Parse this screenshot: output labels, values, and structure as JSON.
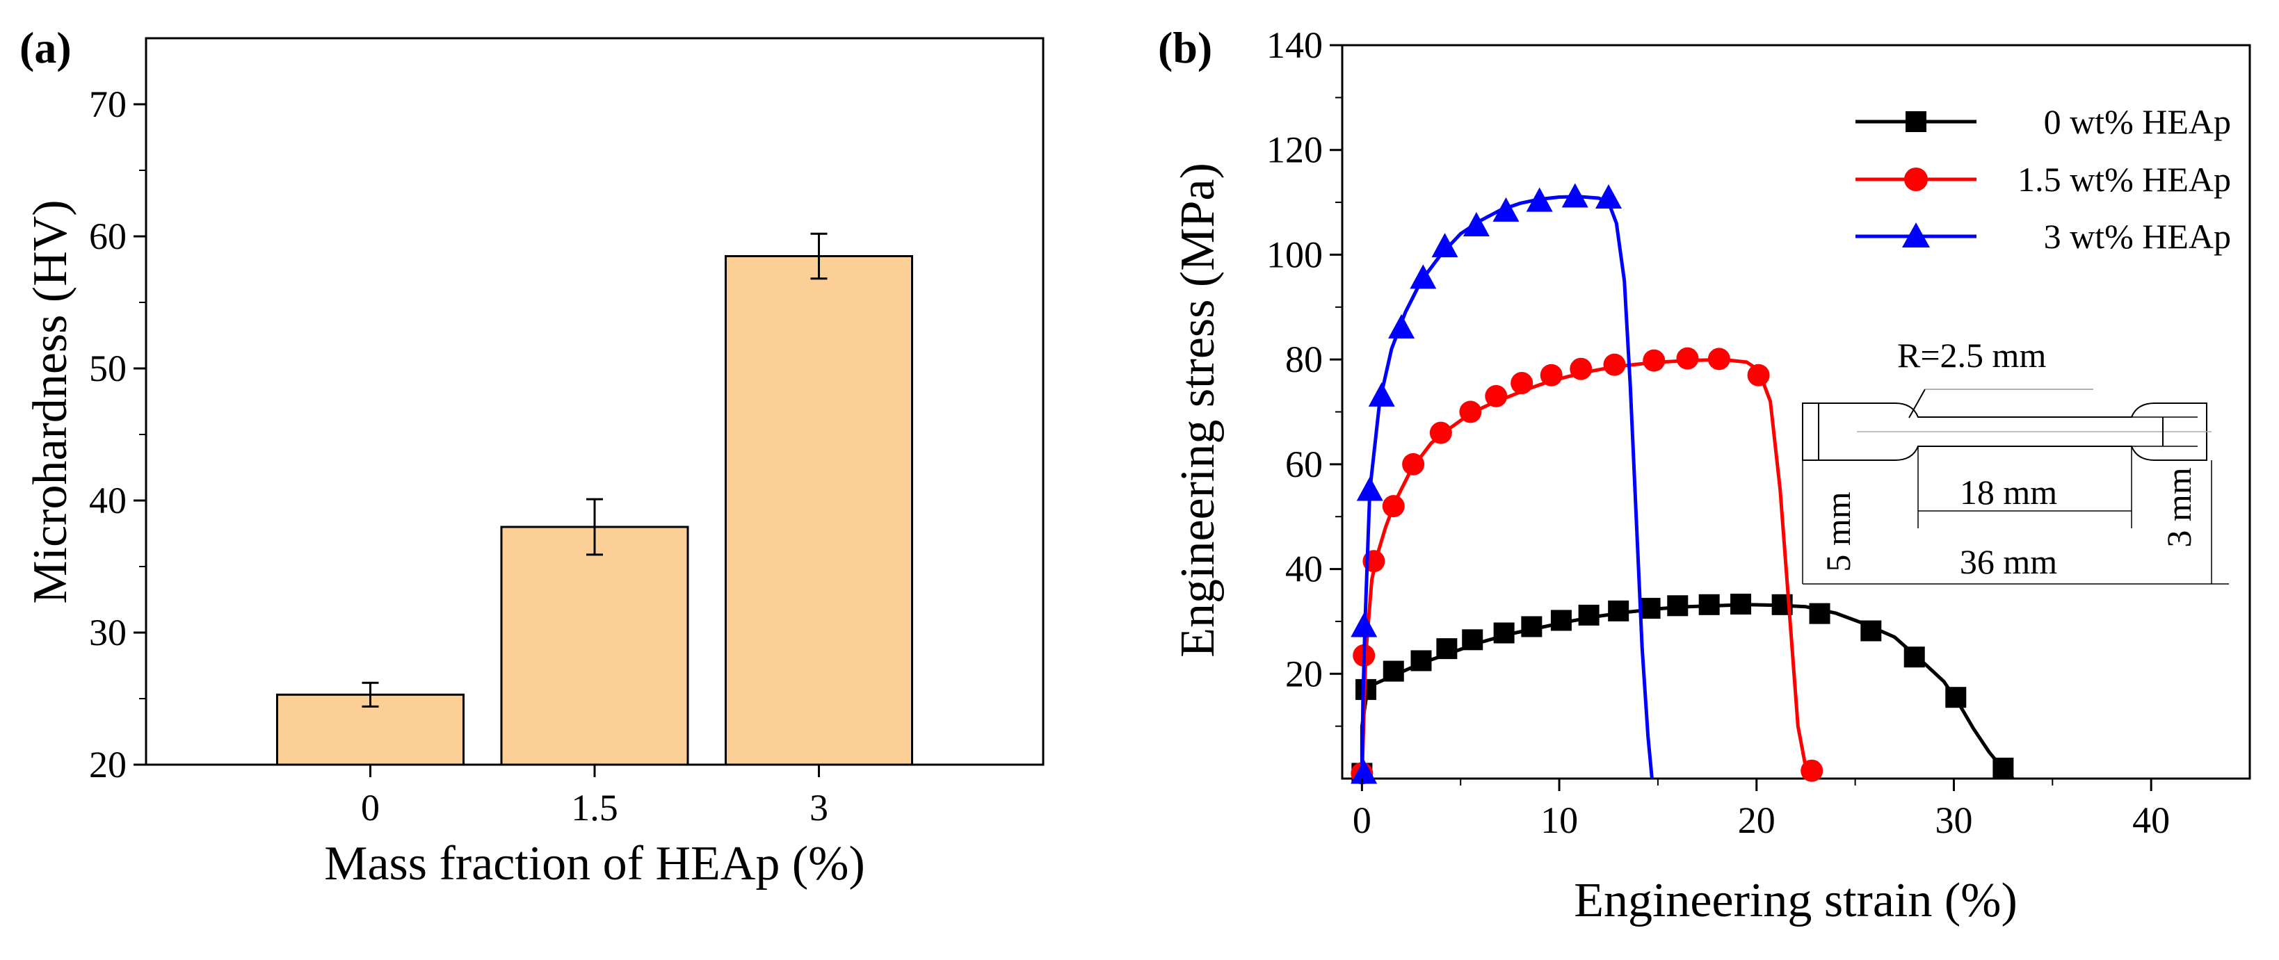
{
  "colors": {
    "bar_fill": "#fccf96",
    "bar_stroke": "#000000",
    "series_0": "#000000",
    "series_1": "#ff0000",
    "series_2": "#0000ff"
  },
  "chart_data": [
    {
      "panel": "(a)",
      "type": "bar",
      "categories": [
        "0",
        "1.5",
        "3"
      ],
      "values": [
        25.3,
        38.0,
        58.5
      ],
      "errors": [
        0.9,
        2.1,
        1.7
      ],
      "xlabel": "Mass fraction of HEAp (%)",
      "ylabel": "Microhardness (HV)",
      "ylim": [
        20,
        75
      ],
      "yticks": [
        20,
        30,
        40,
        50,
        60,
        70
      ],
      "grid": false
    },
    {
      "panel": "(b)",
      "type": "line",
      "xlabel": "Engineering strain (%)",
      "ylabel": "Engineering stress (MPa)",
      "xlim": [
        -1,
        45
      ],
      "ylim": [
        0,
        140
      ],
      "xticks": [
        0,
        10,
        20,
        30,
        40
      ],
      "yticks": [
        20,
        40,
        60,
        80,
        100,
        120,
        140
      ],
      "grid": false,
      "legend": "top-right",
      "series": [
        {
          "name": "0 wt% HEAp",
          "marker": "square",
          "x": [
            0,
            0,
            0.3,
            1.5,
            3,
            4.5,
            6,
            7.5,
            9,
            10.5,
            12,
            13.5,
            15,
            16.5,
            18,
            19.5,
            21,
            22.5,
            24,
            25.5,
            27,
            28.5,
            29.5,
            30.3,
            31,
            31.8,
            32.5,
            33
          ],
          "y": [
            0,
            10,
            17.5,
            19.5,
            22,
            24,
            26,
            27.6,
            28.8,
            30,
            31,
            31.8,
            32.4,
            32.8,
            33,
            33.2,
            33.1,
            32.8,
            31.6,
            29.5,
            27,
            22,
            18.5,
            14,
            9.5,
            5,
            1.8,
            0
          ],
          "markers": [
            [
              0,
              1
            ],
            [
              0.2,
              17
            ],
            [
              1.6,
              20.5
            ],
            [
              3,
              22.5
            ],
            [
              4.3,
              24.8
            ],
            [
              5.6,
              26.5
            ],
            [
              7.2,
              27.8
            ],
            [
              8.6,
              29
            ],
            [
              10.1,
              30.2
            ],
            [
              11.5,
              31.2
            ],
            [
              13,
              32
            ],
            [
              14.6,
              32.5
            ],
            [
              16,
              33
            ],
            [
              17.6,
              33.2
            ],
            [
              19.2,
              33.3
            ],
            [
              21.3,
              33.2
            ],
            [
              23.2,
              31.5
            ],
            [
              25.8,
              28.2
            ],
            [
              28,
              23.2
            ],
            [
              30.1,
              15.5
            ],
            [
              32.5,
              2
            ]
          ]
        },
        {
          "name": "1.5 wt% HEAp",
          "marker": "circle",
          "x": [
            0,
            0.1,
            0.2,
            0.5,
            0.8,
            1.2,
            1.7,
            2.5,
            3.5,
            4.5,
            5.5,
            6.5,
            7.5,
            8.5,
            9.5,
            10.5,
            11.5,
            12.5,
            13.5,
            14.5,
            15.5,
            16.5,
            17.5,
            18.5,
            19.5,
            20.1,
            20.7,
            21.2,
            21.7,
            22.1,
            22.5,
            22.8
          ],
          "y": [
            0,
            12,
            24,
            38,
            43,
            48,
            53,
            59,
            64,
            67,
            69.7,
            71.5,
            73,
            74.5,
            75.8,
            76.8,
            77.7,
            78.4,
            78.9,
            79.3,
            79.6,
            79.8,
            79.9,
            79.9,
            79.5,
            78,
            72,
            55,
            30,
            10,
            2,
            0
          ],
          "markers": [
            [
              0,
              1
            ],
            [
              0.1,
              23.5
            ],
            [
              0.6,
              41.5
            ],
            [
              1.6,
              52
            ],
            [
              2.6,
              60
            ],
            [
              4,
              66
            ],
            [
              5.5,
              70
            ],
            [
              6.8,
              73
            ],
            [
              8.1,
              75.5
            ],
            [
              9.6,
              77
            ],
            [
              11.1,
              78.2
            ],
            [
              12.8,
              79
            ],
            [
              14.8,
              79.8
            ],
            [
              16.5,
              80.2
            ],
            [
              18.1,
              80.1
            ],
            [
              20.1,
              77
            ],
            [
              22.8,
              1.5
            ]
          ]
        },
        {
          "name": "3 wt% HEAp",
          "marker": "triangle",
          "x": [
            0,
            0.05,
            0.15,
            0.4,
            0.9,
            1.5,
            2.2,
            3,
            4,
            5,
            6,
            7,
            8,
            9,
            10,
            11,
            12,
            12.5,
            12.9,
            13.3,
            13.6,
            13.9,
            14.2,
            14.5,
            14.7
          ],
          "y": [
            0,
            15,
            29,
            55,
            72,
            82,
            89,
            95,
            100,
            104,
            106.5,
            108.5,
            109.8,
            110.6,
            111,
            111.1,
            110.8,
            110,
            106,
            95,
            75,
            50,
            25,
            8,
            0
          ],
          "markers": [
            [
              0.1,
              1
            ],
            [
              0.1,
              29
            ],
            [
              0.4,
              55
            ],
            [
              1,
              73
            ],
            [
              2,
              86
            ],
            [
              3.1,
              95.5
            ],
            [
              4.2,
              101.5
            ],
            [
              5.8,
              105.5
            ],
            [
              7.3,
              108.3
            ],
            [
              9,
              110.2
            ],
            [
              10.8,
              111
            ],
            [
              12.5,
              110.8
            ]
          ]
        }
      ]
    }
  ],
  "inset": {
    "labels": [
      "R=2.5 mm",
      "18 mm",
      "36 mm",
      "5 mm",
      "3 mm"
    ]
  }
}
